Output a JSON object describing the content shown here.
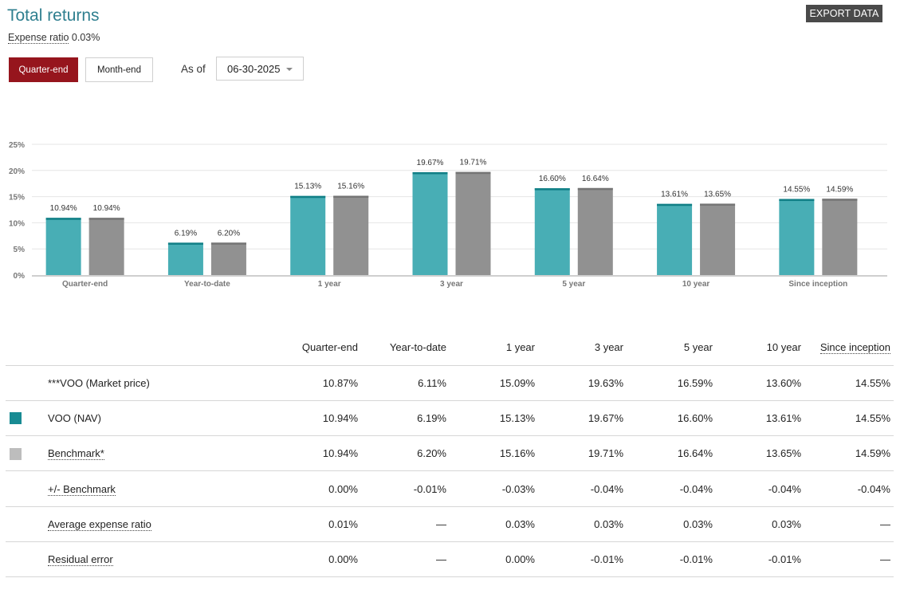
{
  "header": {
    "title": "Total returns",
    "expense_label": "Expense ratio",
    "expense_value": "0.03%",
    "export_label": "EXPORT DATA"
  },
  "controls": {
    "quarter_end_label": "Quarter-end",
    "month_end_label": "Month-end",
    "as_of_label": "As of",
    "as_of_value": "06-30-2025"
  },
  "colors": {
    "nav": "#48aeb5",
    "nav_cap": "#117f86",
    "benchmark": "#919191",
    "benchmark_cap": "#757575",
    "active_button": "#96151d"
  },
  "chart_data": {
    "type": "bar",
    "title": "",
    "xlabel": "",
    "ylabel": "",
    "ylim": [
      0,
      25
    ],
    "yticks": [
      "0%",
      "5%",
      "10%",
      "15%",
      "20%",
      "25%"
    ],
    "categories": [
      "Quarter-end",
      "Year-to-date",
      "1 year",
      "3 year",
      "5 year",
      "10 year",
      "Since inception"
    ],
    "series": [
      {
        "name": "VOO (NAV)",
        "values": [
          10.94,
          6.19,
          15.13,
          19.67,
          16.6,
          13.61,
          14.55
        ],
        "labels": [
          "10.94%",
          "6.19%",
          "15.13%",
          "19.67%",
          "16.60%",
          "13.61%",
          "14.55%"
        ]
      },
      {
        "name": "Benchmark*",
        "values": [
          10.94,
          6.2,
          15.16,
          19.71,
          16.64,
          13.65,
          14.59
        ],
        "labels": [
          "10.94%",
          "6.20%",
          "15.16%",
          "19.71%",
          "16.64%",
          "13.65%",
          "14.59%"
        ]
      }
    ],
    "grid": true,
    "legend": "none"
  },
  "table": {
    "columns": [
      "Quarter-end",
      "Year-to-date",
      "1 year",
      "3 year",
      "5 year",
      "10 year",
      "Since inception"
    ],
    "rows": [
      {
        "label": "***VOO (Market price)",
        "values": [
          "10.87%",
          "6.11%",
          "15.09%",
          "19.63%",
          "16.59%",
          "13.60%",
          "14.55%"
        ]
      },
      {
        "label": "VOO (NAV)",
        "values": [
          "10.94%",
          "6.19%",
          "15.13%",
          "19.67%",
          "16.60%",
          "13.61%",
          "14.55%"
        ]
      },
      {
        "label": "Benchmark*",
        "values": [
          "10.94%",
          "6.20%",
          "15.16%",
          "19.71%",
          "16.64%",
          "13.65%",
          "14.59%"
        ]
      },
      {
        "label": "+/- Benchmark",
        "values": [
          "0.00%",
          "-0.01%",
          "-0.03%",
          "-0.04%",
          "-0.04%",
          "-0.04%",
          "-0.04%"
        ]
      },
      {
        "label": "Average expense ratio",
        "values": [
          "0.01%",
          "—",
          "0.03%",
          "0.03%",
          "0.03%",
          "0.03%",
          "—"
        ]
      },
      {
        "label": "Residual error",
        "values": [
          "0.00%",
          "—",
          "0.00%",
          "-0.01%",
          "-0.01%",
          "-0.01%",
          "—"
        ]
      }
    ]
  }
}
